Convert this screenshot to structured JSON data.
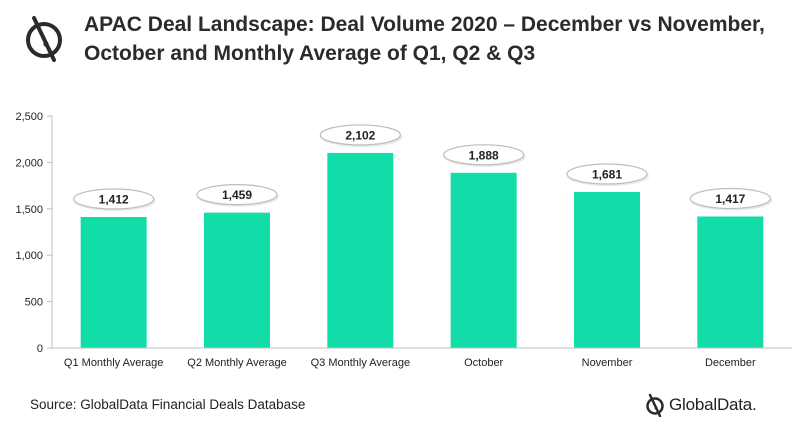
{
  "header": {
    "title": "APAC Deal Landscape: Deal Volume 2020 – December vs November, October and Monthly Average of Q1, Q2 & Q3"
  },
  "footer": {
    "source": "Source: GlobalData Financial Deals Database",
    "brand": "GlobalData."
  },
  "colors": {
    "bar": "#12dca7",
    "axis": "#bfbfbf",
    "text": "#222222",
    "bubble_fill": "#ffffff",
    "bubble_stroke": "#bdbdbd"
  },
  "chart_data": {
    "type": "bar",
    "title": "APAC Deal Landscape: Deal Volume 2020 – December vs November, October and Monthly Average of Q1, Q2 & Q3",
    "categories": [
      "Q1 Monthly Average",
      "Q2 Monthly Average",
      "Q3 Monthly Average",
      "October",
      "November",
      "December"
    ],
    "values": [
      1412,
      1459,
      2102,
      1888,
      1681,
      1417
    ],
    "data_labels": [
      "1,412",
      "1,459",
      "2,102",
      "1,888",
      "1,681",
      "1,417"
    ],
    "yticks": [
      0,
      500,
      1000,
      1500,
      2000,
      2500
    ],
    "ytick_labels": [
      "0",
      "500",
      "1,000",
      "1,500",
      "2,000",
      "2,500"
    ],
    "ylim": [
      0,
      2500
    ],
    "xlabel": "",
    "ylabel": "",
    "grid": false,
    "legend": "none"
  }
}
